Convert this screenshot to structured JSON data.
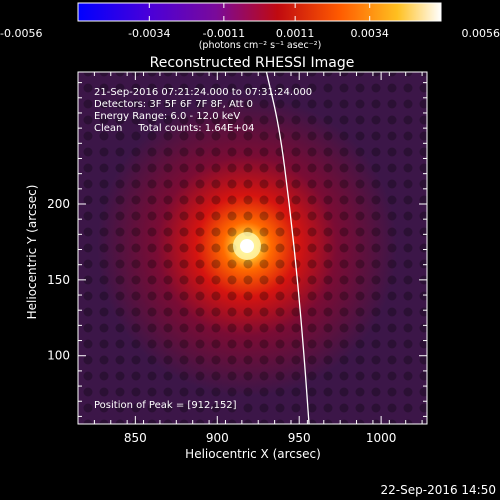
{
  "chart_data": {
    "type": "heatmap",
    "title": "Reconstructed RHESSI Image",
    "xlabel": "Heliocentric X (arcsec)",
    "ylabel": "Heliocentric Y (arcsec)",
    "xlim": [
      815,
      1028
    ],
    "ylim": [
      55,
      287
    ],
    "x_ticks": [
      850,
      900,
      950,
      1000
    ],
    "y_ticks": [
      100,
      150,
      200
    ],
    "colorbar": {
      "min": -0.0056,
      "max": 0.0056,
      "tick_values": [
        -0.0056,
        -0.0034,
        -0.0011,
        0.0011,
        0.0034,
        0.0056
      ],
      "tick_labels": [
        "-0.0056",
        "-0.0034",
        "-0.0011",
        "0.0011",
        "0.0034",
        "0.0056"
      ],
      "unit_label": "(photons cm⁻² s⁻¹ asec⁻²)"
    },
    "source": {
      "peak_x": 912,
      "peak_y": 152
    },
    "annotations": {
      "time_range": "21-Sep-2016 07:21:24.000 to 07:31:24.000",
      "detectors": "Detectors: 3F 5F 6F 7F 8F, Att 0",
      "energy": "Energy Range: 6.0 - 12.0 keV",
      "clean": "Clean     Total counts: 1.64E+04",
      "peak": "Position of Peak = [912,152]"
    },
    "limb_curve": [
      [
        930,
        287
      ],
      [
        938,
        250
      ],
      [
        944,
        200
      ],
      [
        949,
        150
      ],
      [
        953,
        100
      ],
      [
        956,
        55
      ]
    ],
    "timestamp": "22-Sep-2016 14:50"
  }
}
